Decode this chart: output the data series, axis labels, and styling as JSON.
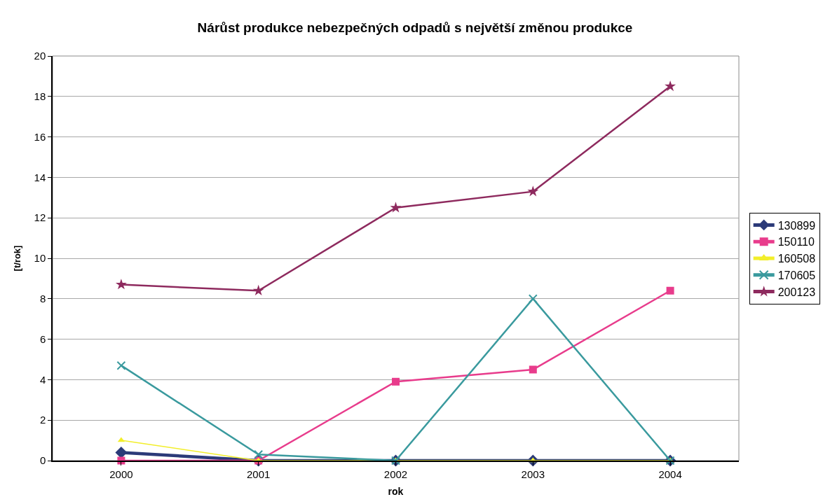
{
  "chart_data": {
    "type": "line",
    "title": "Nárůst produkce nebezpečných odpadů s největší změnou produkce",
    "xlabel": "rok",
    "ylabel": "[t/rok]",
    "categories": [
      "2000",
      "2001",
      "2002",
      "2003",
      "2004"
    ],
    "series": [
      {
        "name": "130899",
        "color": "#2b3a78",
        "marker": "diamond",
        "values": [
          0.4,
          0,
          0,
          0,
          0
        ]
      },
      {
        "name": "150110",
        "color": "#e83c8c",
        "marker": "square",
        "values": [
          0,
          0,
          3.9,
          4.5,
          8.4
        ]
      },
      {
        "name": "160508",
        "color": "#f2ee2a",
        "marker": "triangle",
        "values": [
          1.0,
          0,
          0,
          0,
          0
        ]
      },
      {
        "name": "170605",
        "color": "#3a9a9e",
        "marker": "cross",
        "values": [
          4.7,
          0.3,
          0,
          8.0,
          0
        ]
      },
      {
        "name": "200123",
        "color": "#8e2a5e",
        "marker": "star",
        "values": [
          8.7,
          8.4,
          12.5,
          13.3,
          18.5
        ]
      }
    ],
    "ylim": [
      0,
      20
    ],
    "yticks": [
      0,
      2,
      4,
      6,
      8,
      10,
      12,
      14,
      16,
      18,
      20
    ],
    "grid": "y",
    "legend": "right",
    "line_style": "solid"
  }
}
